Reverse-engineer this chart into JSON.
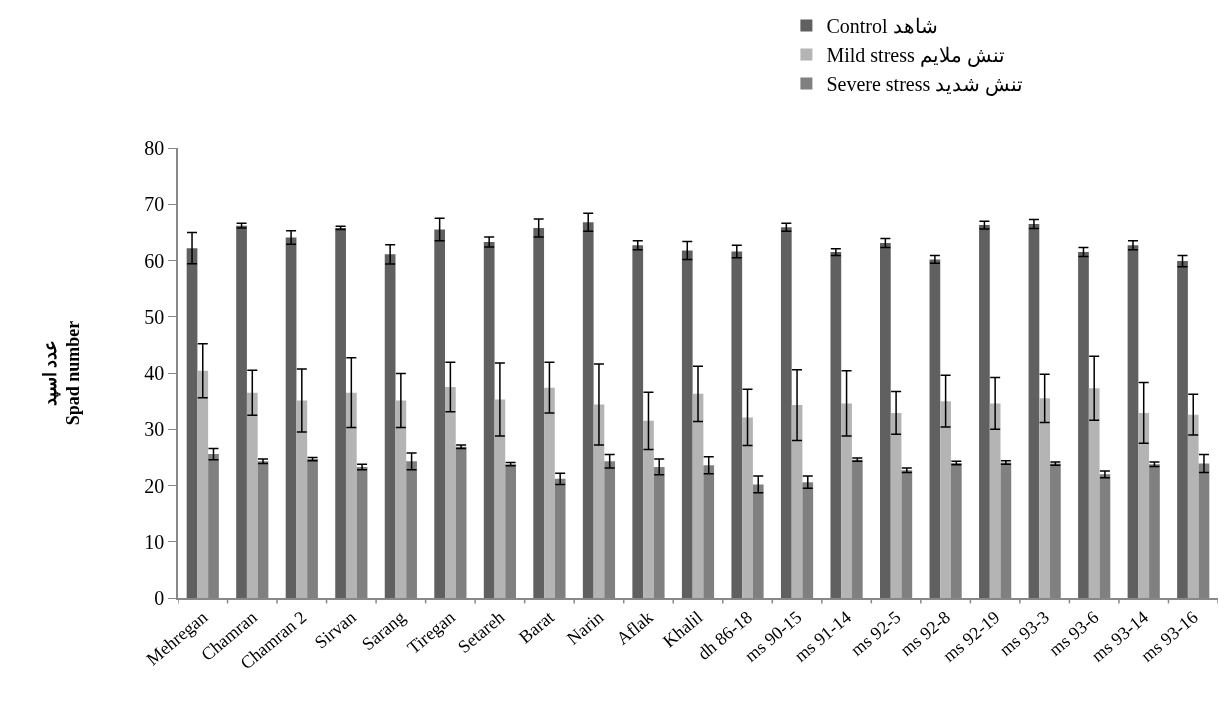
{
  "chart_data": {
    "type": "bar",
    "ylabel": "عدد اسپد\nSpad number",
    "categories": [
      "Mehregan",
      "Chamran",
      "Chamran 2",
      "Sirvan",
      "Sarang",
      "Tiregan",
      "Setareh",
      "Barat",
      "Narin",
      "Aflak",
      "Khalil",
      "dh 86-18",
      "ms 90-15",
      "ms 91-14",
      "ms 92-5",
      "ms 92-8",
      "ms 92-19",
      "ms 93-3",
      "ms 93-6",
      "ms 93-14",
      "ms 93-16"
    ],
    "series": [
      {
        "name": "Control شاهد",
        "color": "#606060",
        "values": [
          62.2,
          66.2,
          64.1,
          65.8,
          61.1,
          65.5,
          63.3,
          65.8,
          66.8,
          62.7,
          61.8,
          61.6,
          65.9,
          61.5,
          63.1,
          60.2,
          66.3,
          66.5,
          61.5,
          62.7,
          59.9
        ],
        "errors": [
          2.8,
          0.4,
          1.2,
          0.3,
          1.7,
          2.0,
          0.9,
          1.6,
          1.6,
          0.8,
          1.6,
          1.1,
          0.7,
          0.6,
          0.8,
          0.7,
          0.7,
          0.8,
          0.8,
          0.8,
          1.0
        ]
      },
      {
        "name": "Mild stress تنش ملایم",
        "color": "#b4b4b4",
        "values": [
          40.4,
          36.5,
          35.1,
          36.5,
          35.1,
          37.5,
          35.3,
          37.4,
          34.4,
          31.5,
          36.3,
          32.1,
          34.3,
          34.6,
          32.9,
          35.0,
          34.6,
          35.5,
          37.3,
          32.9,
          32.6
        ],
        "errors": [
          4.8,
          4.0,
          5.6,
          6.2,
          4.8,
          4.4,
          6.5,
          4.5,
          7.2,
          5.1,
          4.9,
          5.0,
          6.3,
          5.8,
          3.8,
          4.6,
          4.6,
          4.3,
          5.7,
          5.4,
          3.6
        ]
      },
      {
        "name": "Severe stress تنش شدید",
        "color": "#808080",
        "values": [
          25.6,
          24.3,
          24.7,
          23.3,
          24.3,
          26.9,
          23.8,
          21.2,
          24.3,
          23.3,
          23.6,
          20.2,
          20.6,
          24.6,
          22.7,
          24.0,
          24.1,
          23.9,
          22.0,
          23.8,
          23.9
        ],
        "errors": [
          1.0,
          0.4,
          0.3,
          0.5,
          1.5,
          0.3,
          0.3,
          1.0,
          1.2,
          1.4,
          1.5,
          1.5,
          1.1,
          0.3,
          0.4,
          0.3,
          0.3,
          0.3,
          0.6,
          0.4,
          1.6
        ]
      }
    ],
    "ylim": [
      0,
      80
    ],
    "yticks": [
      0,
      10,
      20,
      30,
      40,
      50,
      60,
      70,
      80
    ],
    "legend": "top right"
  }
}
